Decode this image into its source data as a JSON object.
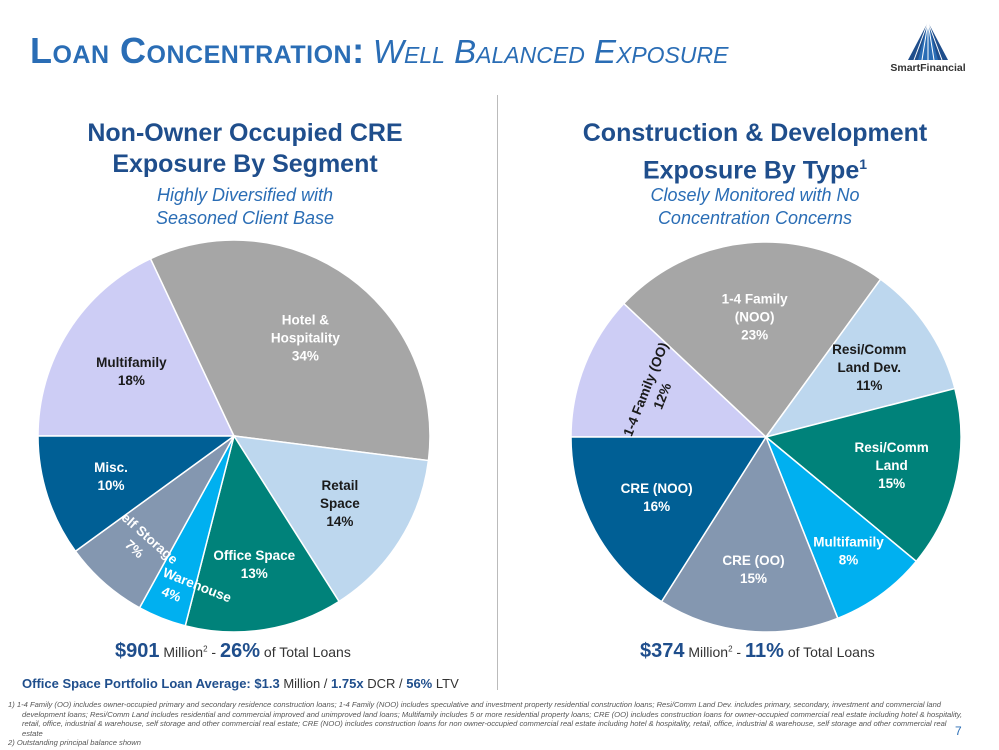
{
  "header": {
    "title_main": "Loan Concentration:",
    "title_sub": "Well Balanced Exposure",
    "logo_text": "SmartFinancial"
  },
  "left": {
    "title_line1": "Non-Owner Occupied CRE",
    "title_line2": "Exposure By Segment",
    "subtitle_line1": "Highly Diversified with",
    "subtitle_line2": "Seasoned Client Base",
    "total_amount": "$901",
    "total_unit": "Million",
    "total_sup": "2",
    "total_dash": "-",
    "total_pct": "26%",
    "total_suffix": "of Total Loans"
  },
  "right": {
    "title_line1": "Construction & Development",
    "title_line2": "Exposure By Type",
    "title_sup": "1",
    "subtitle_line1": "Closely Monitored with No",
    "subtitle_line2": "Concentration Concerns",
    "total_amount": "$374",
    "total_unit": "Million",
    "total_sup": "2",
    "total_dash": "-",
    "total_pct": "11%",
    "total_suffix": "of Total Loans"
  },
  "office_note": {
    "label": "Office Space Portfolio Loan Average:",
    "avg": "$1.3",
    "avg_unit": "Million /",
    "dcr": "1.75x",
    "dcr_unit": "DCR /",
    "ltv": "56%",
    "ltv_unit": "LTV"
  },
  "footnotes": [
    "1) 1-4 Family (OO) includes owner-occupied primary and secondary residence construction loans; 1-4 Family (NOO) includes speculative and investment property residential construction loans; Resi/Comm Land Dev. includes primary, secondary, investment and commercial land development loans; Resi/Comm Land includes residential and commercial improved and unimproved land loans; Multifamily includes 5 or more residential property loans; CRE (OO) includes construction loans for owner-occupied commercial real estate including hotel & hospitality, retail, office, industrial & warehouse, self storage and other commercial real estate; CRE (NOO) includes construction loans for non owner-occupied commercial real estate including hotel & hospitality, retail, office, industrial & warehouse, self storage and other commercial real estate",
    "2) Outstanding principal balance shown"
  ],
  "page_number": "7",
  "chart_data": [
    {
      "type": "pie",
      "title": "Non-Owner Occupied CRE Exposure By Segment",
      "start_angle_deg": 180,
      "slices": [
        {
          "label": "Multifamily",
          "value": 18,
          "pct_label": "18%",
          "color": "#cdcdf5",
          "text_color": "#1a1a1a"
        },
        {
          "label": "Hotel & Hospitality",
          "value": 34,
          "pct_label": "34%",
          "color": "#a6a6a6",
          "text_color": "#ffffff"
        },
        {
          "label": "Retail Space",
          "value": 14,
          "pct_label": "14%",
          "color": "#bdd7ee",
          "text_color": "#1a1a1a"
        },
        {
          "label": "Office Space",
          "value": 13,
          "pct_label": "13%",
          "color": "#00827a",
          "text_color": "#ffffff"
        },
        {
          "label": "Ind. & Warehouse",
          "value": 4,
          "pct_label": "4%",
          "color": "#00b0f0",
          "text_color": "#ffffff",
          "rotate_label": true
        },
        {
          "label": "Self Storage",
          "value": 7,
          "pct_label": "7%",
          "color": "#8497b0",
          "text_color": "#ffffff",
          "rotate_label": true
        },
        {
          "label": "Misc.",
          "value": 10,
          "pct_label": "10%",
          "color": "#005f95",
          "text_color": "#ffffff"
        }
      ]
    },
    {
      "type": "pie",
      "title": "Construction & Development Exposure By Type",
      "start_angle_deg": 180,
      "slices": [
        {
          "label": "1-4 Family (OO)",
          "value": 12,
          "pct_label": "12%",
          "color": "#cdcdf5",
          "text_color": "#1a1a1a",
          "rotate_label": true
        },
        {
          "label": "1-4 Family (NOO)",
          "value": 23,
          "pct_label": "23%",
          "color": "#a6a6a6",
          "text_color": "#ffffff"
        },
        {
          "label": "Resi/Comm Land Dev.",
          "value": 11,
          "pct_label": "11%",
          "color": "#bdd7ee",
          "text_color": "#1a1a1a"
        },
        {
          "label": "Resi/Comm Land",
          "value": 15,
          "pct_label": "15%",
          "color": "#00827a",
          "text_color": "#ffffff"
        },
        {
          "label": "Multifamily",
          "value": 8,
          "pct_label": "8%",
          "color": "#00b0f0",
          "text_color": "#ffffff"
        },
        {
          "label": "CRE (OO)",
          "value": 15,
          "pct_label": "15%",
          "color": "#8497b0",
          "text_color": "#ffffff"
        },
        {
          "label": "CRE (NOO)",
          "value": 16,
          "pct_label": "16%",
          "color": "#005f95",
          "text_color": "#ffffff"
        }
      ]
    }
  ]
}
